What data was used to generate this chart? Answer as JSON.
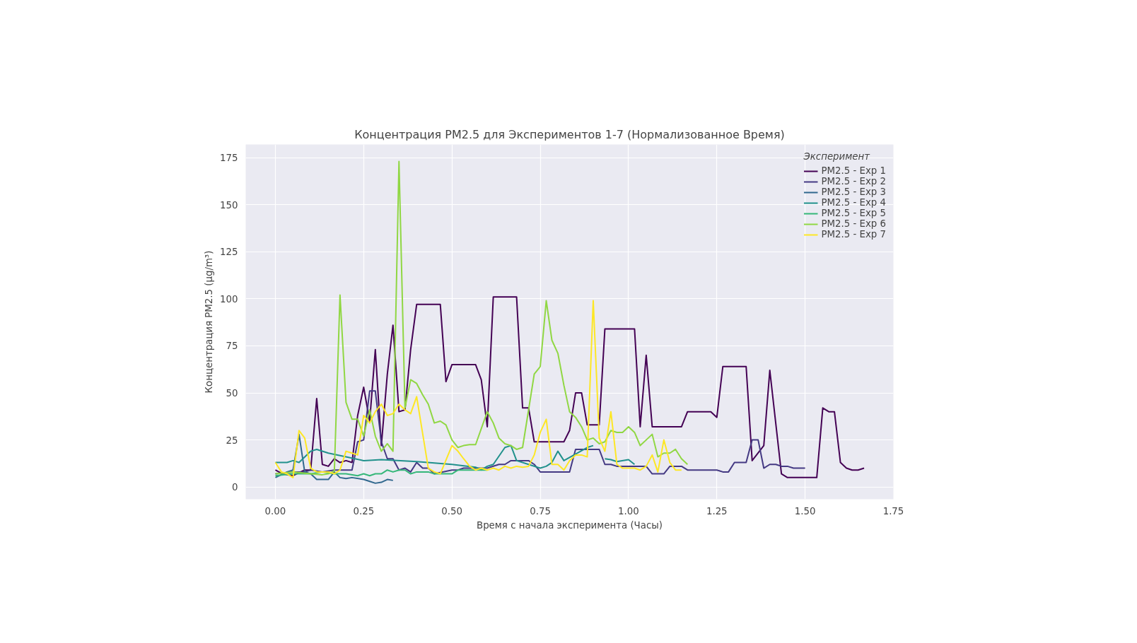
{
  "chart_data": {
    "type": "line",
    "title": "Концентрация PM2.5 для Экспериментов 1-7 (Нормализованное Время)",
    "xlabel": "Время с начала эксперимента (Часы)",
    "ylabel": "Концентрация PM2.5 (μg/m³)",
    "legend_title": "Эксперимент",
    "legend": "top right",
    "grid": true,
    "line_style": "solid",
    "xlim": [
      -0.084,
      1.75
    ],
    "xticks": [
      {
        "value": 0,
        "label": "0.00"
      },
      {
        "value": 0.25,
        "label": "0.25"
      },
      {
        "value": 0.5,
        "label": "0.50"
      },
      {
        "value": 0.75,
        "label": "0.75"
      },
      {
        "value": 1,
        "label": "1.00"
      },
      {
        "value": 1.25,
        "label": "1.25"
      },
      {
        "value": 1.5,
        "label": "1.50"
      },
      {
        "value": 1.75,
        "label": "1.75"
      }
    ],
    "ylim": [
      -6.5,
      182
    ],
    "yticks": [
      0,
      25,
      50,
      75,
      100,
      125,
      150,
      175
    ],
    "series": [
      {
        "name": "PM2.5 - Exp 1",
        "color": "#440154",
        "x": [
          0,
          0.02,
          0.05,
          0.083,
          0.1,
          0.117,
          0.133,
          0.15,
          0.167,
          0.183,
          0.2,
          0.217,
          0.233,
          0.25,
          0.267,
          0.283,
          0.3,
          0.317,
          0.333,
          0.35,
          0.367,
          0.383,
          0.4,
          0.467,
          0.483,
          0.5,
          0.567,
          0.583,
          0.6,
          0.617,
          0.683,
          0.7,
          0.717,
          0.733,
          0.817,
          0.833,
          0.85,
          0.867,
          0.883,
          0.917,
          0.933,
          1.017,
          1.033,
          1.05,
          1.067,
          1.15,
          1.167,
          1.233,
          1.25,
          1.267,
          1.333,
          1.35,
          1.383,
          1.4,
          1.433,
          1.45,
          1.533,
          1.55,
          1.567,
          1.583,
          1.6,
          1.617,
          1.633,
          1.65,
          1.667
        ],
        "values": [
          9,
          7,
          6,
          9,
          9,
          47,
          12,
          11,
          15,
          13,
          14,
          13,
          38,
          53,
          35,
          73,
          22,
          60,
          86,
          40,
          41,
          73,
          97,
          97,
          56,
          65,
          65,
          57,
          32,
          101,
          101,
          42,
          42,
          24,
          24,
          30,
          50,
          50,
          33,
          33,
          84,
          84,
          32,
          70,
          32,
          32,
          40,
          40,
          37,
          64,
          64,
          14,
          22,
          62,
          7,
          5,
          5,
          42,
          40,
          40,
          13,
          10,
          9,
          9,
          10
        ]
      },
      {
        "name": "PM2.5 - Exp 2",
        "color": "#443983",
        "x": [
          0,
          0.05,
          0.083,
          0.1,
          0.133,
          0.167,
          0.2,
          0.217,
          0.233,
          0.25,
          0.267,
          0.283,
          0.3,
          0.317,
          0.333,
          0.35,
          0.367,
          0.383,
          0.4,
          0.417,
          0.433,
          0.45,
          0.5,
          0.517,
          0.533,
          0.583,
          0.6,
          0.633,
          0.65,
          0.667,
          0.717,
          0.733,
          0.75,
          0.833,
          0.85,
          0.917,
          0.933,
          0.95,
          0.967,
          1.05,
          1.067,
          1.1,
          1.117,
          1.15,
          1.167,
          1.25,
          1.267,
          1.283,
          1.3,
          1.333,
          1.35,
          1.367,
          1.383,
          1.4,
          1.417,
          1.433,
          1.45,
          1.467,
          1.5
        ],
        "values": [
          7,
          8,
          8,
          9,
          8,
          9,
          9,
          9,
          24,
          25,
          51,
          51,
          24,
          15,
          15,
          9,
          10,
          8,
          13,
          10,
          10,
          7,
          9,
          9,
          10,
          10,
          10,
          12,
          12,
          14,
          14,
          12,
          8,
          8,
          20,
          20,
          12,
          12,
          11,
          11,
          7,
          7,
          11,
          11,
          9,
          9,
          8,
          8,
          13,
          13,
          25,
          25,
          10,
          12,
          12,
          11,
          11,
          10,
          10
        ]
      },
      {
        "name": "PM2.5 - Exp 3",
        "color": "#31688e",
        "x": [
          0,
          0.033,
          0.05,
          0.067,
          0.083,
          0.1,
          0.117,
          0.15,
          0.167,
          0.183,
          0.2,
          0.217,
          0.25,
          0.267,
          0.283,
          0.3,
          0.317,
          0.333
        ],
        "values": [
          5,
          8,
          9,
          28,
          8,
          7,
          4,
          4,
          8,
          5,
          4.5,
          5,
          4,
          3,
          2,
          2.5,
          4,
          3.5
        ]
      },
      {
        "name": "PM2.5 - Exp 4",
        "color": "#21918c",
        "x": [
          0,
          0.033,
          0.05,
          0.067,
          0.1,
          0.117,
          0.15,
          0.2,
          0.25,
          0.3,
          0.4,
          0.5,
          0.567,
          0.583,
          0.6,
          0.617,
          0.65,
          0.667,
          0.683,
          0.717,
          0.75,
          0.767,
          0.783,
          0.8,
          0.817,
          0.883,
          0.9,
          0.917,
          0.933,
          0.95,
          0.967,
          1.0,
          1.017
        ],
        "values": [
          13,
          13,
          14,
          13,
          19,
          20,
          18,
          16,
          14,
          14.5,
          13.5,
          12,
          10.5,
          9,
          11,
          12,
          21,
          22,
          14,
          12,
          10,
          11,
          13,
          19,
          14,
          21,
          22,
          null,
          15,
          14.5,
          13.5,
          14.5,
          12
        ]
      },
      {
        "name": "PM2.5 - Exp 5",
        "color": "#35b779",
        "x": [
          0,
          0.05,
          0.1,
          0.133,
          0.167,
          0.2,
          0.233,
          0.25,
          0.267,
          0.283,
          0.3,
          0.317,
          0.333,
          0.35,
          0.367,
          0.383,
          0.4,
          0.433,
          0.45,
          0.5,
          0.517,
          0.533,
          0.55,
          0.6
        ],
        "values": [
          6,
          7,
          7,
          8,
          7,
          7,
          6,
          7,
          6,
          7,
          7,
          9,
          8,
          9,
          9,
          7,
          8,
          8,
          7,
          7,
          9,
          9,
          9,
          9
        ]
      },
      {
        "name": "PM2.5 - Exp 6",
        "color": "#90d743",
        "x": [
          0,
          0.05,
          0.1,
          0.133,
          0.15,
          0.167,
          0.183,
          0.2,
          0.217,
          0.233,
          0.25,
          0.267,
          0.283,
          0.3,
          0.317,
          0.333,
          0.35,
          0.367,
          0.383,
          0.4,
          0.417,
          0.433,
          0.45,
          0.467,
          0.483,
          0.5,
          0.517,
          0.533,
          0.55,
          0.567,
          0.6,
          0.617,
          0.633,
          0.65,
          0.667,
          0.683,
          0.7,
          0.717,
          0.733,
          0.75,
          0.767,
          0.783,
          0.8,
          0.817,
          0.833,
          0.85,
          0.867,
          0.883,
          0.9,
          0.917,
          0.933,
          0.95,
          0.967,
          0.983,
          1.0,
          1.017,
          1.033,
          1.05,
          1.067,
          1.083,
          1.1,
          1.117,
          1.133,
          1.15,
          1.167
        ],
        "values": [
          7,
          8,
          7,
          6.5,
          7,
          8.5,
          102,
          45,
          36,
          36,
          27,
          41,
          27,
          19,
          23,
          19,
          173,
          42,
          57,
          55,
          49,
          44,
          34,
          35,
          33,
          25,
          21,
          22,
          22.5,
          22.5,
          40,
          34,
          26,
          23,
          22,
          20,
          21,
          41,
          60,
          64,
          99,
          78,
          71,
          54,
          40,
          37,
          32,
          25,
          26,
          23,
          24,
          30,
          29,
          29,
          32,
          29,
          22,
          25,
          28,
          16,
          18,
          18,
          20,
          15,
          12
        ]
      },
      {
        "name": "PM2.5 - Exp 7",
        "color": "#fde725",
        "x": [
          0,
          0.017,
          0.033,
          0.05,
          0.067,
          0.083,
          0.1,
          0.117,
          0.133,
          0.15,
          0.167,
          0.183,
          0.2,
          0.217,
          0.233,
          0.25,
          0.267,
          0.283,
          0.3,
          0.317,
          0.333,
          0.35,
          0.367,
          0.383,
          0.4,
          0.433,
          0.45,
          0.467,
          0.5,
          0.517,
          0.533,
          0.55,
          0.567,
          0.583,
          0.6,
          0.617,
          0.633,
          0.65,
          0.667,
          0.683,
          0.7,
          0.717,
          0.733,
          0.75,
          0.767,
          0.783,
          0.8,
          0.817,
          0.833,
          0.85,
          0.867,
          0.883,
          0.9,
          0.917,
          0.933,
          0.95,
          0.967,
          0.983,
          1.0,
          1.017,
          1.033,
          1.05,
          1.067,
          1.083,
          1.1,
          1.117,
          1.133,
          1.15
        ],
        "values": [
          13,
          8,
          7,
          5,
          30,
          26,
          10,
          8,
          8,
          8,
          7,
          9,
          19,
          18,
          17,
          38,
          34,
          40,
          44,
          38,
          39,
          44,
          41,
          39,
          48,
          10,
          8,
          7,
          22,
          19,
          15,
          11,
          9,
          10,
          9,
          10,
          9,
          11,
          10,
          11,
          10.5,
          11,
          17,
          29,
          36,
          12,
          12,
          9,
          14,
          17,
          17,
          16,
          99,
          26,
          19,
          40,
          12,
          10,
          10,
          10,
          9,
          11,
          17,
          8,
          25,
          13,
          9,
          9
        ]
      }
    ]
  }
}
